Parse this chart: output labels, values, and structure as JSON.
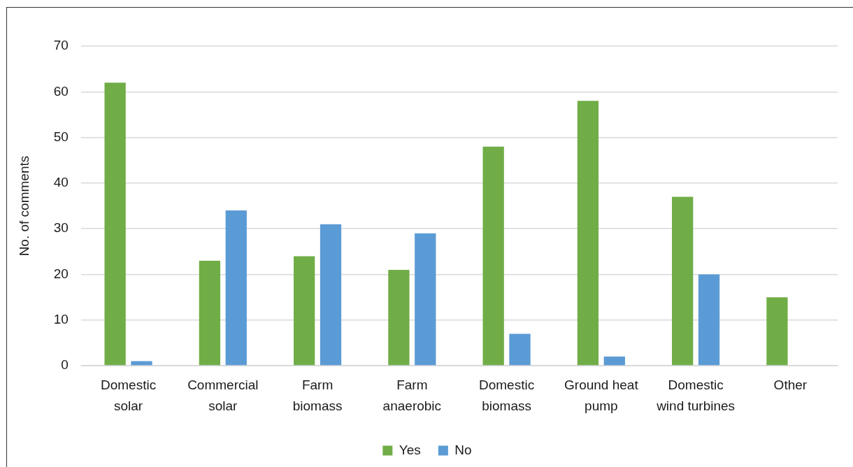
{
  "chart_data": {
    "type": "bar",
    "ylabel": "No. of comments",
    "categories": [
      "Domestic solar",
      "Commercial solar",
      "Farm biomass",
      "Farm anaerobic",
      "Domestic biomass",
      "Ground heat pump",
      "Domestic wind turbines",
      "Other"
    ],
    "series": [
      {
        "name": "Yes",
        "color": "#70ad47",
        "values": [
          62,
          23,
          24,
          21,
          48,
          58,
          37,
          15
        ]
      },
      {
        "name": "No",
        "color": "#5b9bd5",
        "values": [
          1,
          34,
          31,
          29,
          7,
          2,
          20,
          null
        ]
      }
    ],
    "ylim": [
      0,
      70
    ],
    "yticks": [
      0,
      10,
      20,
      30,
      40,
      50,
      60,
      70
    ],
    "grid": "y",
    "legend": "bottom"
  }
}
